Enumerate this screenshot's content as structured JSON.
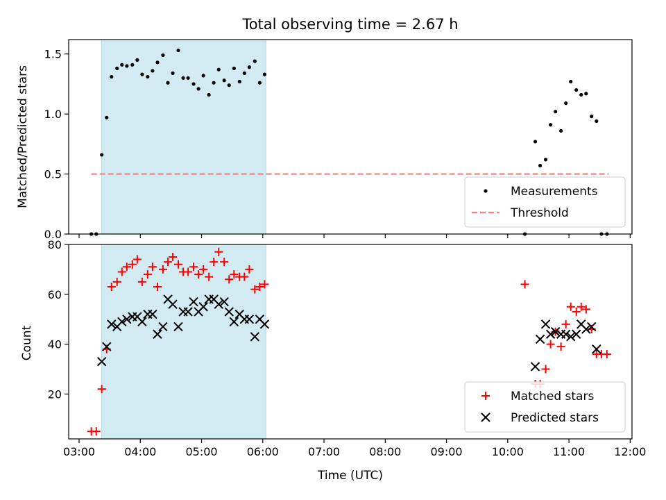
{
  "chart_data": {
    "title": "Total observing time = 2.67 h",
    "xlabel": "Time (UTC)",
    "x_unit": "hours (UTC)",
    "xlim": [
      2.83,
      12.03
    ],
    "xticks": [
      {
        "value": 3,
        "label": "03:00"
      },
      {
        "value": 4,
        "label": "04:00"
      },
      {
        "value": 5,
        "label": "05:00"
      },
      {
        "value": 6,
        "label": "06:00"
      },
      {
        "value": 7,
        "label": "07:00"
      },
      {
        "value": 8,
        "label": "08:00"
      },
      {
        "value": 9,
        "label": "09:00"
      },
      {
        "value": 10,
        "label": "10:00"
      },
      {
        "value": 11,
        "label": "11:00"
      },
      {
        "value": 12,
        "label": "12:00"
      }
    ],
    "shaded_span": {
      "x_start": 3.37,
      "x_end": 6.05,
      "color": "#add8e6"
    },
    "panels": [
      {
        "type": "scatter",
        "ylabel": "Matched/Predicted stars",
        "ylim": [
          0,
          1.62
        ],
        "yticks": [
          0.0,
          0.5,
          1.0,
          1.5
        ],
        "ytick_labels": [
          "0.0",
          "0.5",
          "1.0",
          "1.5"
        ],
        "legend": {
          "placement": "lower right"
        },
        "threshold": {
          "name": "Threshold",
          "value": 0.5,
          "x_start": 3.2,
          "x_end": 11.65,
          "color": "#f08080"
        },
        "series": [
          {
            "name": "Measurements",
            "marker": "dot",
            "color": "#000000",
            "x": [
              3.2,
              3.28,
              3.37,
              3.45,
              3.53,
              3.62,
              3.7,
              3.78,
              3.87,
              3.95,
              4.03,
              4.12,
              4.2,
              4.28,
              4.37,
              4.45,
              4.53,
              4.62,
              4.7,
              4.78,
              4.87,
              4.95,
              5.03,
              5.12,
              5.2,
              5.28,
              5.37,
              5.45,
              5.53,
              5.62,
              5.7,
              5.78,
              5.87,
              5.95,
              6.03,
              10.28,
              10.45,
              10.53,
              10.62,
              10.7,
              10.78,
              10.87,
              10.95,
              11.03,
              11.12,
              11.2,
              11.28,
              11.37,
              11.45,
              11.53,
              11.62
            ],
            "y": [
              0.0,
              0.0,
              0.66,
              0.97,
              1.31,
              1.38,
              1.41,
              1.4,
              1.41,
              1.45,
              1.33,
              1.31,
              1.36,
              1.43,
              1.49,
              1.26,
              1.34,
              1.53,
              1.3,
              1.3,
              1.25,
              1.21,
              1.32,
              1.16,
              1.26,
              1.37,
              1.28,
              1.24,
              1.38,
              1.27,
              1.34,
              1.39,
              1.44,
              1.26,
              1.33,
              0.0,
              0.77,
              0.57,
              0.62,
              0.91,
              1.02,
              0.86,
              1.09,
              1.27,
              1.2,
              1.16,
              1.17,
              0.98,
              0.94,
              0.0,
              0.0
            ]
          }
        ]
      },
      {
        "type": "scatter",
        "ylabel": "Count",
        "ylim": [
          2,
          80
        ],
        "yticks": [
          20,
          40,
          60,
          80
        ],
        "ytick_labels": [
          "20",
          "40",
          "60",
          "80"
        ],
        "legend": {
          "placement": "lower right"
        },
        "series": [
          {
            "name": "Matched stars",
            "marker": "plus",
            "color": "#ff0000",
            "x": [
              3.2,
              3.28,
              3.37,
              3.45,
              3.53,
              3.62,
              3.7,
              3.78,
              3.87,
              3.95,
              4.03,
              4.12,
              4.2,
              4.28,
              4.37,
              4.45,
              4.53,
              4.62,
              4.7,
              4.78,
              4.87,
              4.95,
              5.03,
              5.12,
              5.2,
              5.28,
              5.37,
              5.45,
              5.53,
              5.62,
              5.7,
              5.78,
              5.87,
              5.95,
              6.03,
              10.28,
              10.45,
              10.53,
              10.62,
              10.7,
              10.78,
              10.87,
              10.95,
              11.03,
              11.12,
              11.2,
              11.28,
              11.37,
              11.45,
              11.53,
              11.62
            ],
            "y": [
              5,
              5,
              22,
              38,
              63,
              65,
              69,
              71,
              72,
              74,
              65,
              68,
              71,
              63,
              70,
              73,
              75,
              72,
              69,
              69,
              71,
              68,
              70,
              67,
              73,
              77,
              73,
              66,
              68,
              67,
              67,
              70,
              62,
              63,
              64,
              64,
              24,
              24,
              30,
              40,
              45,
              39,
              48,
              55,
              53,
              55,
              54,
              46,
              36,
              36,
              36
            ]
          },
          {
            "name": "Predicted stars",
            "marker": "x",
            "color": "#000000",
            "x": [
              3.37,
              3.45,
              3.53,
              3.62,
              3.7,
              3.78,
              3.87,
              3.95,
              4.03,
              4.12,
              4.2,
              4.28,
              4.37,
              4.45,
              4.53,
              4.62,
              4.7,
              4.78,
              4.87,
              4.95,
              5.03,
              5.12,
              5.2,
              5.28,
              5.37,
              5.45,
              5.53,
              5.62,
              5.7,
              5.78,
              5.87,
              5.95,
              6.03,
              10.45,
              10.53,
              10.62,
              10.7,
              10.78,
              10.87,
              10.95,
              11.03,
              11.12,
              11.2,
              11.28,
              11.37,
              11.45
            ],
            "y": [
              33,
              39,
              48,
              47,
              49,
              50,
              51,
              51,
              49,
              52,
              52,
              44,
              47,
              58,
              56,
              47,
              53,
              53,
              57,
              53,
              55,
              58,
              58,
              56,
              57,
              53,
              49,
              52,
              50,
              50,
              43,
              50,
              48,
              31,
              42,
              48,
              44,
              45,
              44,
              44,
              43,
              44,
              48,
              46,
              47,
              38
            ]
          }
        ]
      }
    ]
  }
}
